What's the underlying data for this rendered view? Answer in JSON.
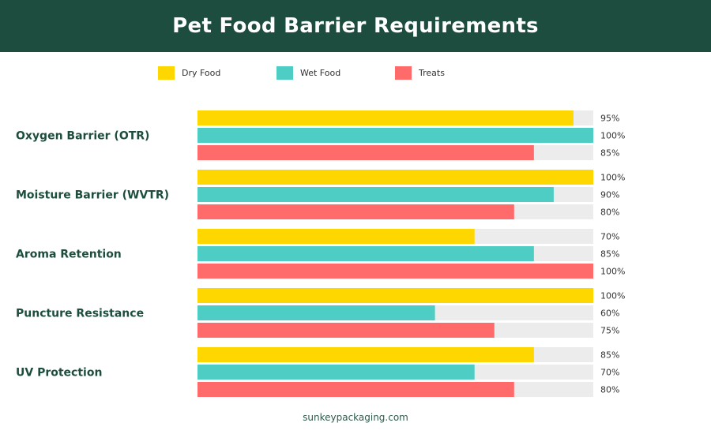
{
  "header": {
    "title": "Pet Food Barrier Requirements"
  },
  "colors": {
    "header_bg": "#1d4d3e",
    "track": "#ececec",
    "category_text": "#1d4d3e"
  },
  "chart_data": {
    "type": "bar",
    "orientation": "horizontal",
    "title": "Pet Food Barrier Requirements",
    "categories": [
      "Oxygen Barrier (OTR)",
      "Moisture Barrier (WVTR)",
      "Aroma Retention",
      "Puncture Resistance",
      "UV Protection"
    ],
    "series": [
      {
        "name": "Dry Food",
        "color": "#ffd700",
        "values": [
          95,
          100,
          70,
          100,
          85
        ]
      },
      {
        "name": "Wet Food",
        "color": "#4ecdc4",
        "values": [
          100,
          90,
          85,
          60,
          70
        ]
      },
      {
        "name": "Treats",
        "color": "#ff6b6b",
        "values": [
          85,
          80,
          100,
          75,
          80
        ]
      }
    ],
    "value_suffix": "%",
    "xlim": [
      0,
      100
    ],
    "legend_position": "top",
    "grid": false
  },
  "footer": {
    "text": "sunkeypackaging.com"
  }
}
